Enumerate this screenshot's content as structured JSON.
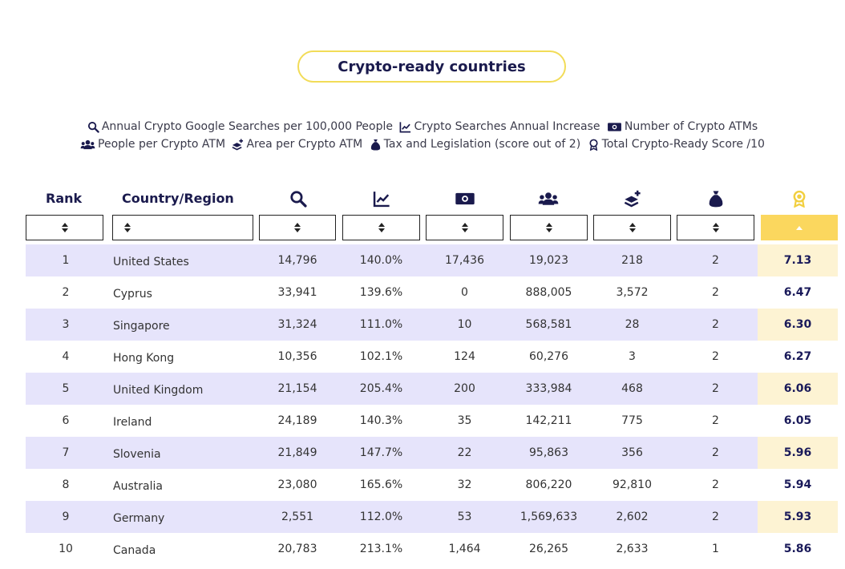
{
  "title": "Crypto-ready countries",
  "legend": {
    "searches": "Annual Crypto Google Searches per 100,000 People",
    "increase": "Crypto Searches Annual Increase",
    "atms": "Number of Crypto ATMs",
    "people": "People per Crypto ATM",
    "area": "Area per Crypto ATM",
    "tax": "Tax and Legislation (score out of 2)",
    "total": "Total Crypto-Ready Score /10"
  },
  "headers": {
    "rank": "Rank",
    "country": "Country/Region"
  },
  "icons": {
    "searches": "search-icon",
    "increase": "line-chart-icon",
    "atms": "money-bill-icon",
    "people": "users-icon",
    "area": "layers-plus-icon",
    "tax": "money-bag-icon",
    "total": "award-ribbon-icon"
  },
  "colors": {
    "accent": "#fbd75e",
    "navy": "#1a1a4d",
    "row_shade": "#e6e4fb",
    "score_shade": "#fdf3d3"
  },
  "sort": {
    "active_column": "total",
    "direction": "ascending-indicator"
  },
  "rows": [
    {
      "rank": "1",
      "country": "United States",
      "searches": "14,796",
      "increase": "140.0%",
      "atms": "17,436",
      "people": "19,023",
      "area": "218",
      "tax": "2",
      "total": "7.13"
    },
    {
      "rank": "2",
      "country": "Cyprus",
      "searches": "33,941",
      "increase": "139.6%",
      "atms": "0",
      "people": "888,005",
      "area": "3,572",
      "tax": "2",
      "total": "6.47"
    },
    {
      "rank": "3",
      "country": "Singapore",
      "searches": "31,324",
      "increase": "111.0%",
      "atms": "10",
      "people": "568,581",
      "area": "28",
      "tax": "2",
      "total": "6.30"
    },
    {
      "rank": "4",
      "country": "Hong Kong",
      "searches": "10,356",
      "increase": "102.1%",
      "atms": "124",
      "people": "60,276",
      "area": "3",
      "tax": "2",
      "total": "6.27"
    },
    {
      "rank": "5",
      "country": "United Kingdom",
      "searches": "21,154",
      "increase": "205.4%",
      "atms": "200",
      "people": "333,984",
      "area": "468",
      "tax": "2",
      "total": "6.06"
    },
    {
      "rank": "6",
      "country": "Ireland",
      "searches": "24,189",
      "increase": "140.3%",
      "atms": "35",
      "people": "142,211",
      "area": "775",
      "tax": "2",
      "total": "6.05"
    },
    {
      "rank": "7",
      "country": "Slovenia",
      "searches": "21,849",
      "increase": "147.7%",
      "atms": "22",
      "people": "95,863",
      "area": "356",
      "tax": "2",
      "total": "5.96"
    },
    {
      "rank": "8",
      "country": "Australia",
      "searches": "23,080",
      "increase": "165.6%",
      "atms": "32",
      "people": "806,220",
      "area": "92,810",
      "tax": "2",
      "total": "5.94"
    },
    {
      "rank": "9",
      "country": "Germany",
      "searches": "2,551",
      "increase": "112.0%",
      "atms": "53",
      "people": "1,569,633",
      "area": "2,602",
      "tax": "2",
      "total": "5.93"
    },
    {
      "rank": "10",
      "country": "Canada",
      "searches": "20,783",
      "increase": "213.1%",
      "atms": "1,464",
      "people": "26,265",
      "area": "2,633",
      "tax": "1",
      "total": "5.86"
    }
  ]
}
